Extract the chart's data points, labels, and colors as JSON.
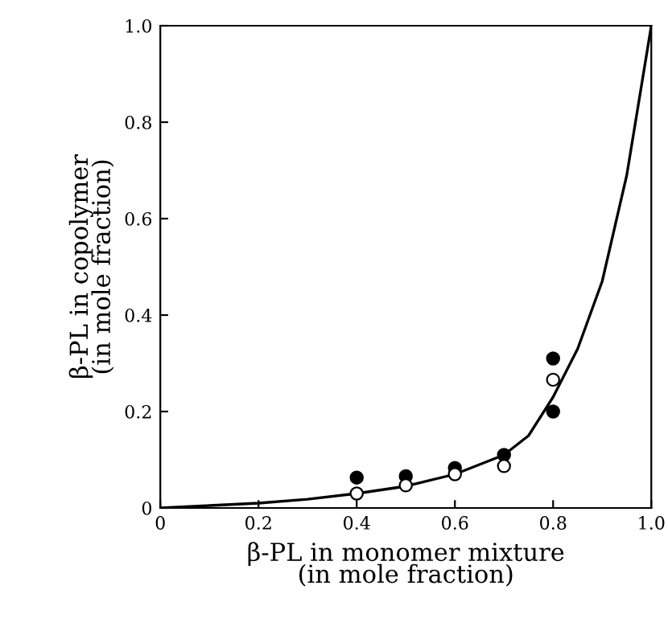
{
  "chart_data": {
    "type": "scatter",
    "xlabel": "β-PL in monomer mixture\n(in mole fraction)",
    "ylabel": "β-PL in copolymer\n(in mole fraction)",
    "xlim": [
      0,
      1.0
    ],
    "ylim": [
      0,
      1.0
    ],
    "xticks": [
      0,
      0.2,
      0.4,
      0.6,
      0.8,
      {
        "value": 1,
        "label": "1.0"
      }
    ],
    "yticks": [
      0,
      0.2,
      0.4,
      0.6,
      0.8,
      {
        "value": 1,
        "label": "1.0"
      }
    ],
    "grid": false,
    "legend": false,
    "series": [
      {
        "type": "line",
        "color": "#000000",
        "marker": "none",
        "x": [
          0,
          0.1,
          0.2,
          0.3,
          0.4,
          0.5,
          0.6,
          0.7,
          0.75,
          0.8,
          0.85,
          0.9,
          0.95,
          1.0
        ],
        "values": [
          0,
          0.005,
          0.01,
          0.018,
          0.03,
          0.045,
          0.07,
          0.11,
          0.15,
          0.23,
          0.33,
          0.47,
          0.69,
          1.0
        ]
      },
      {
        "color": "#000000",
        "marker": "circle",
        "x": [
          0.4,
          0.5,
          0.6,
          0.7,
          0.8,
          0.8
        ],
        "values": [
          0.063,
          0.066,
          0.083,
          0.11,
          0.31,
          0.2
        ]
      },
      {
        "color": "#ffffff",
        "marker": "circle",
        "x": [
          0.4,
          0.5,
          0.6,
          0.7,
          0.8
        ],
        "values": [
          0.03,
          0.047,
          0.07,
          0.087,
          0.266
        ]
      }
    ]
  }
}
